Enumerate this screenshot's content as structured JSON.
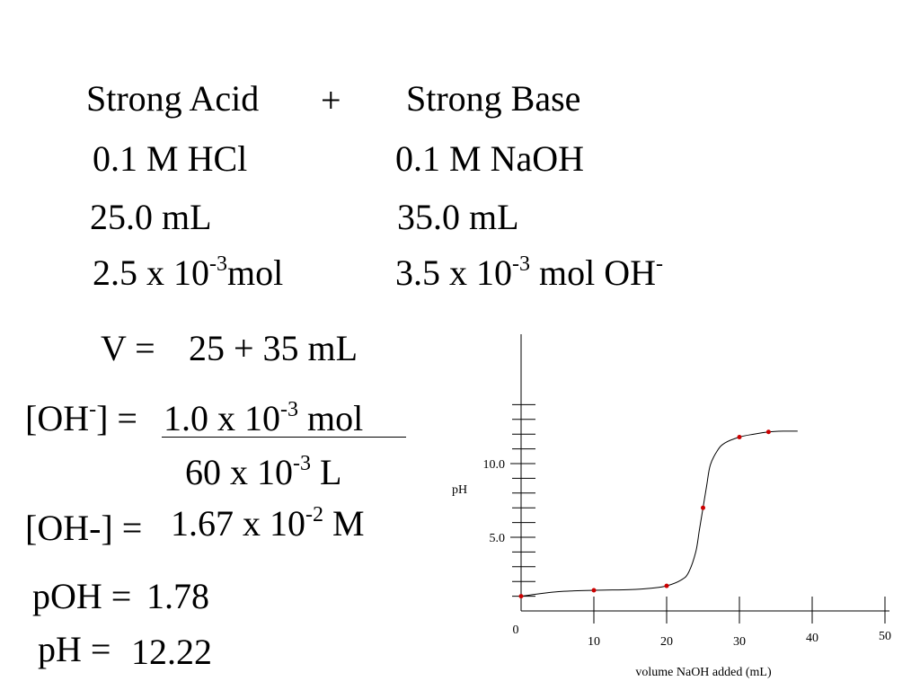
{
  "header": {
    "acid_title": "Strong Acid",
    "plus": "+",
    "base_title": "Strong Base",
    "acid_conc": "0.1 M HCl",
    "base_conc": "0.1 M NaOH",
    "acid_vol": "25.0 mL",
    "base_vol": "35.0 mL",
    "acid_mol_base": "2.5 x 10",
    "acid_mol_exp": "-3",
    "acid_mol_unit": "mol",
    "base_mol_base": "3.5 x 10",
    "base_mol_exp": "-3",
    "base_mol_unit": " mol OH",
    "base_mol_charge": "-"
  },
  "work": {
    "v_label": "V =",
    "v_value": "25 + 35 mL",
    "oh_label_pre": "[OH",
    "oh_label_charge": "-",
    "oh_label_post": "] =",
    "numerator_base": "1.0 x 10",
    "numerator_exp": "-3",
    "numerator_unit": " mol",
    "denominator_base": "60 x 10",
    "denominator_exp": "-3",
    "denominator_unit": " L",
    "oh2_label": "[OH-] =",
    "oh2_base": "1.67 x 10",
    "oh2_exp": "-2",
    "oh2_unit": " M",
    "poh_label": "pOH =",
    "poh_value": "1.78",
    "ph_label": "pH =",
    "ph_value": "12.22"
  },
  "chart_data": {
    "type": "line",
    "title": "",
    "xlabel": "volume NaOH added (mL)",
    "ylabel": "pH",
    "xlim": [
      0,
      50
    ],
    "ylim": [
      0,
      14
    ],
    "x_ticks": [
      0,
      10,
      20,
      30,
      40,
      50
    ],
    "y_tick_labels": [
      {
        "value": 5.0,
        "label": "5.0"
      },
      {
        "value": 10.0,
        "label": "10.0"
      }
    ],
    "y_minor_tick_step": 1,
    "grid": false,
    "curve_color": "#000000",
    "point_color": "#cc0000",
    "curve": {
      "x": [
        0,
        5,
        10,
        15,
        18,
        20,
        22,
        23,
        24,
        24.5,
        25,
        25.5,
        26,
        27,
        28,
        30,
        32,
        34,
        36,
        38
      ],
      "y": [
        1.0,
        1.3,
        1.4,
        1.45,
        1.55,
        1.7,
        2.1,
        2.6,
        4.0,
        5.5,
        7.0,
        8.5,
        9.9,
        10.9,
        11.4,
        11.8,
        12.0,
        12.15,
        12.2,
        12.2
      ]
    },
    "points": {
      "x": [
        0,
        10,
        20,
        25,
        30,
        34
      ],
      "y": [
        1.0,
        1.4,
        1.7,
        7.0,
        11.8,
        12.15
      ]
    }
  }
}
